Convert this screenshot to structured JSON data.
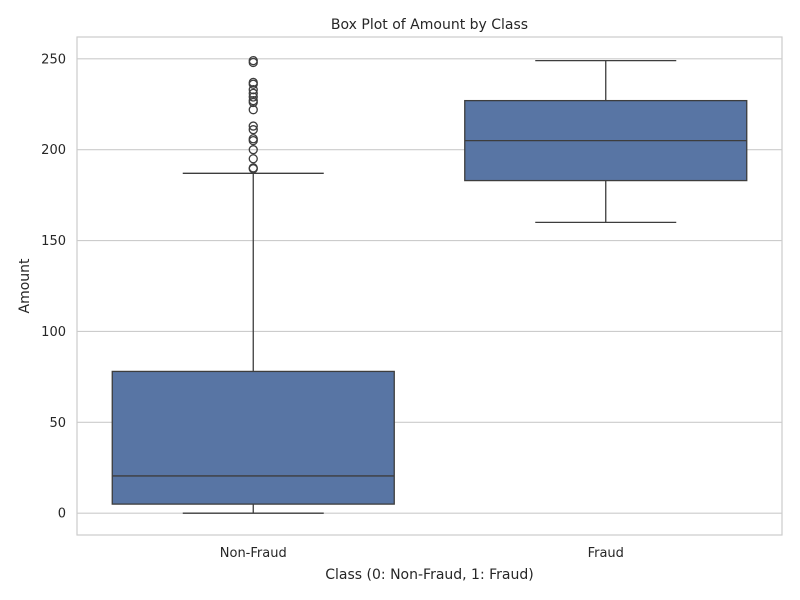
{
  "chart_data": {
    "type": "box",
    "title": "Box Plot of Amount by Class",
    "xlabel": "Class (0: Non-Fraud, 1: Fraud)",
    "ylabel": "Amount",
    "ylim": [
      -12,
      262
    ],
    "yticks": [
      0,
      50,
      100,
      150,
      200,
      250
    ],
    "grid": true,
    "legend": "none",
    "colors": {
      "box_fill": "#5875a4",
      "line": "#3d3d3d",
      "grid": "#cccccc",
      "frame": "#cccccc"
    },
    "categories": [
      "Non-Fraud",
      "Fraud"
    ],
    "boxes": [
      {
        "category": "Non-Fraud",
        "whisker_low": 0,
        "q1": 5,
        "median": 20.5,
        "q3": 78,
        "whisker_high": 187,
        "outliers": [
          189.5,
          190,
          195,
          200,
          205,
          206,
          211,
          213,
          222,
          226,
          227,
          229,
          231,
          233,
          236,
          237,
          248,
          249
        ]
      },
      {
        "category": "Fraud",
        "whisker_low": 160,
        "q1": 183,
        "median": 205,
        "q3": 227,
        "whisker_high": 249,
        "outliers": []
      }
    ]
  }
}
